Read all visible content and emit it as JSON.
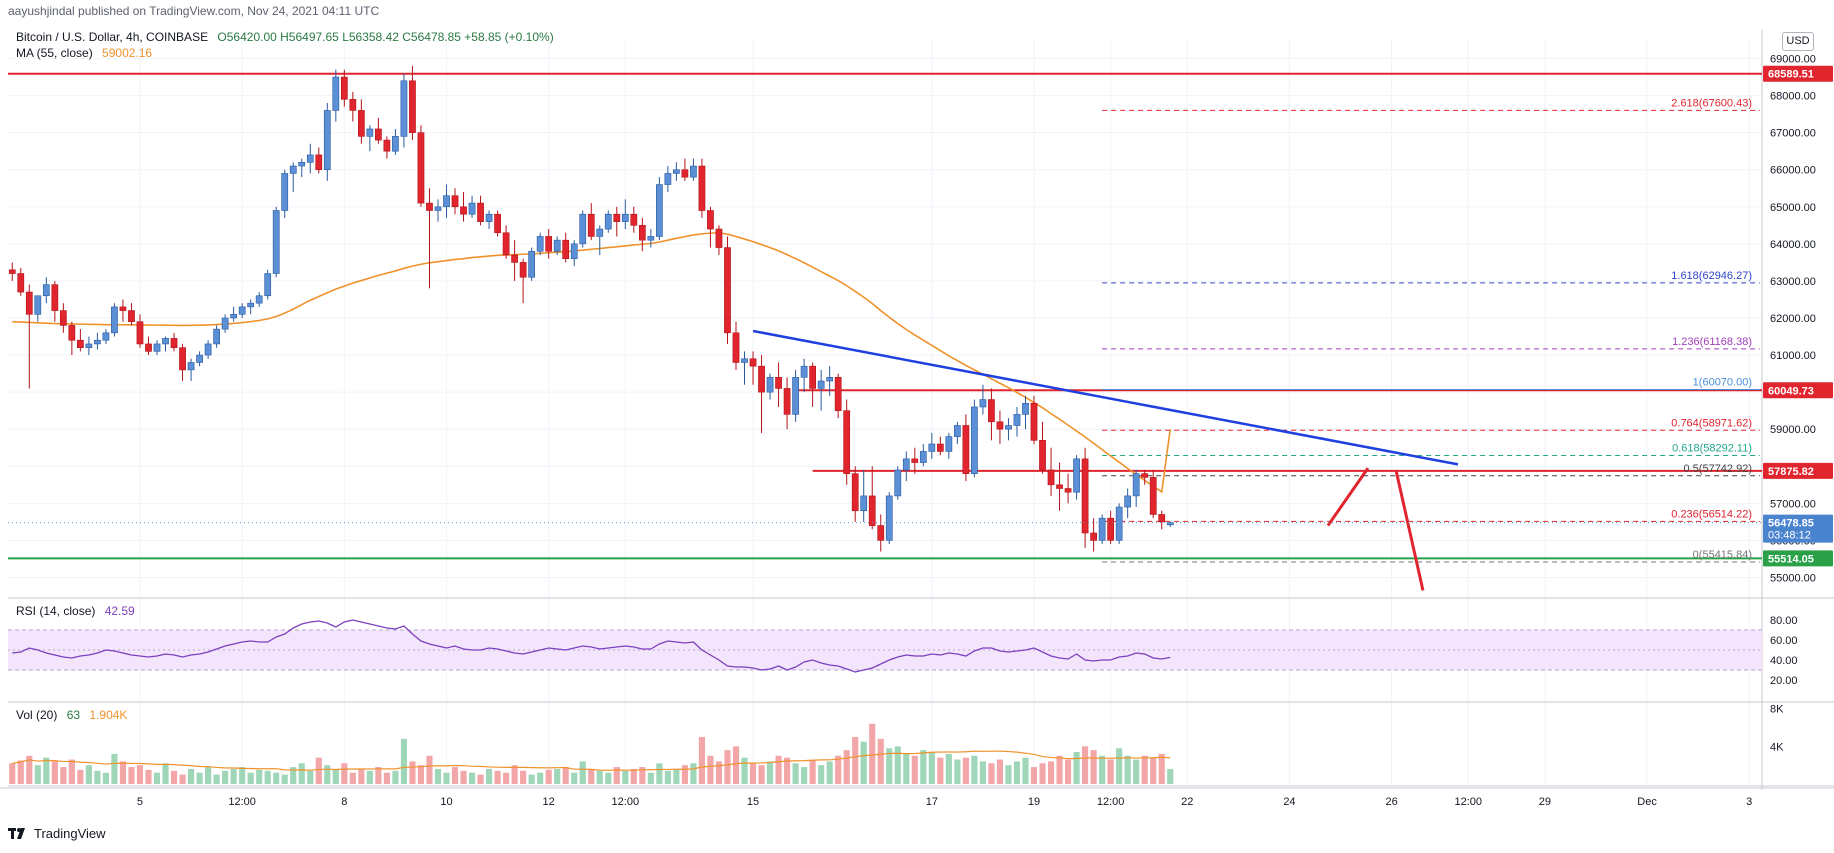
{
  "header": {
    "publisher": "aayushjindal published on TradingView.com, Nov 24, 2021 04:11 UTC"
  },
  "symbol": {
    "title": "Bitcoin / U.S. Dollar, 4h, COINBASE",
    "ohlc": "O56420.00  H56497.65  L56358.42  C56478.85  +58.85 (+0.10%)",
    "ma_label": "MA (55, close)",
    "ma_value": "59002.16"
  },
  "rsi": {
    "label": "RSI (14, close)",
    "value": "42.59"
  },
  "vol": {
    "label": "Vol (20)",
    "value": "63",
    "value2": "1.904K"
  },
  "currency_badge": "USD",
  "footer": {
    "brand": "TradingView"
  },
  "colors": {
    "up": "#5b8fd6",
    "down": "#e0252f",
    "ma": "#f0922b",
    "trend": "#1f3fe0",
    "level": "#e0252f",
    "support": "#2aa148",
    "rsi": "#7c3fbf",
    "rsi_band": "#f3e5fb"
  },
  "chart_data": {
    "type": "candlestick",
    "symbol": "BTCUSD",
    "timeframe": "4h",
    "ylim": [
      54500,
      69500
    ],
    "y_ticks": [
      55000,
      56000,
      57000,
      58000,
      59000,
      60000,
      61000,
      62000,
      63000,
      64000,
      65000,
      66000,
      67000,
      68000,
      69000
    ],
    "x_ticks": [
      {
        "i": 15,
        "label": "5"
      },
      {
        "i": 27,
        "label": "12:00"
      },
      {
        "i": 39,
        "label": "8"
      },
      {
        "i": 51,
        "label": "10"
      },
      {
        "i": 63,
        "label": "12"
      },
      {
        "i": 72,
        "label": "12:00"
      },
      {
        "i": 87,
        "label": "15"
      },
      {
        "i": 108,
        "label": "17"
      },
      {
        "i": 120,
        "label": "19"
      },
      {
        "i": 129,
        "label": "12:00"
      },
      {
        "i": 138,
        "label": "22"
      },
      {
        "i": 150,
        "label": "24"
      },
      {
        "i": 162,
        "label": "26"
      },
      {
        "i": 171,
        "label": "12:00"
      },
      {
        "i": 180,
        "label": "29"
      },
      {
        "i": 192,
        "label": "Dec"
      },
      {
        "i": 204,
        "label": "3"
      }
    ],
    "candles": [
      [
        63300,
        63500,
        63000,
        63200
      ],
      [
        63200,
        63350,
        62600,
        62700
      ],
      [
        62700,
        62900,
        60100,
        62100
      ],
      [
        62100,
        62600,
        61900,
        62600
      ],
      [
        62600,
        63100,
        62400,
        62900
      ],
      [
        62900,
        63000,
        61900,
        62200
      ],
      [
        62200,
        62400,
        61600,
        61800
      ],
      [
        61800,
        61900,
        61000,
        61400
      ],
      [
        61400,
        61700,
        61100,
        61200
      ],
      [
        61200,
        61500,
        61000,
        61300
      ],
      [
        61300,
        61600,
        61150,
        61400
      ],
      [
        61400,
        61700,
        61300,
        61600
      ],
      [
        61600,
        62400,
        61500,
        62300
      ],
      [
        62300,
        62500,
        61900,
        62200
      ],
      [
        62200,
        62400,
        61800,
        61900
      ],
      [
        61900,
        62100,
        61200,
        61300
      ],
      [
        61300,
        61500,
        61000,
        61100
      ],
      [
        61100,
        61400,
        61000,
        61300
      ],
      [
        61300,
        61500,
        61100,
        61450
      ],
      [
        61450,
        61600,
        61100,
        61200
      ],
      [
        61200,
        61300,
        60300,
        60600
      ],
      [
        60600,
        60900,
        60300,
        60800
      ],
      [
        60800,
        61100,
        60700,
        61000
      ],
      [
        61000,
        61400,
        60900,
        61300
      ],
      [
        61300,
        61800,
        61200,
        61700
      ],
      [
        61700,
        62100,
        61600,
        62000
      ],
      [
        62000,
        62300,
        61900,
        62100
      ],
      [
        62100,
        62400,
        62000,
        62300
      ],
      [
        62300,
        62500,
        62100,
        62400
      ],
      [
        62400,
        62700,
        62300,
        62600
      ],
      [
        62600,
        63300,
        62500,
        63200
      ],
      [
        63200,
        65000,
        63100,
        64900
      ],
      [
        64900,
        66000,
        64700,
        65900
      ],
      [
        65900,
        66200,
        65400,
        66100
      ],
      [
        66100,
        66300,
        65800,
        66200
      ],
      [
        66200,
        66700,
        65900,
        66400
      ],
      [
        66400,
        66600,
        65900,
        66000
      ],
      [
        66000,
        67800,
        65700,
        67600
      ],
      [
        67600,
        68700,
        67300,
        68500
      ],
      [
        68500,
        68700,
        67700,
        67900
      ],
      [
        67900,
        68100,
        67300,
        67600
      ],
      [
        67600,
        67900,
        66700,
        66900
      ],
      [
        66900,
        67200,
        66500,
        67100
      ],
      [
        67100,
        67400,
        66700,
        66800
      ],
      [
        66800,
        66900,
        66300,
        66500
      ],
      [
        66500,
        67100,
        66400,
        66900
      ],
      [
        66900,
        68600,
        66600,
        68400
      ],
      [
        68400,
        68800,
        66800,
        67000
      ],
      [
        67000,
        67200,
        65000,
        65100
      ],
      [
        65100,
        65500,
        62800,
        64900
      ],
      [
        64900,
        65200,
        64600,
        65000
      ],
      [
        65000,
        65600,
        64700,
        65300
      ],
      [
        65300,
        65500,
        64800,
        65000
      ],
      [
        65000,
        65400,
        64600,
        64800
      ],
      [
        64800,
        65300,
        64700,
        65100
      ],
      [
        65100,
        65300,
        64500,
        64600
      ],
      [
        64600,
        64900,
        64400,
        64800
      ],
      [
        64800,
        64900,
        64200,
        64300
      ],
      [
        64300,
        64500,
        63600,
        63700
      ],
      [
        63700,
        64100,
        63000,
        63500
      ],
      [
        63500,
        63600,
        62400,
        63100
      ],
      [
        63100,
        63900,
        63000,
        63800
      ],
      [
        63800,
        64300,
        63700,
        64200
      ],
      [
        64200,
        64400,
        63600,
        63800
      ],
      [
        63800,
        64200,
        63700,
        64100
      ],
      [
        64100,
        64300,
        63500,
        63600
      ],
      [
        63600,
        64100,
        63400,
        64000
      ],
      [
        64000,
        64900,
        63900,
        64800
      ],
      [
        64800,
        65100,
        64100,
        64200
      ],
      [
        64200,
        64500,
        63700,
        64400
      ],
      [
        64400,
        64900,
        64300,
        64800
      ],
      [
        64800,
        65000,
        64200,
        64600
      ],
      [
        64600,
        65200,
        64400,
        64800
      ],
      [
        64800,
        65000,
        64300,
        64500
      ],
      [
        64500,
        64700,
        63800,
        64100
      ],
      [
        64100,
        64400,
        63900,
        64200
      ],
      [
        64200,
        65800,
        64100,
        65600
      ],
      [
        65600,
        66100,
        65400,
        65900
      ],
      [
        65900,
        66200,
        65700,
        66000
      ],
      [
        66000,
        66300,
        65700,
        65800
      ],
      [
        65800,
        66300,
        65700,
        66100
      ],
      [
        66100,
        66300,
        64700,
        64900
      ],
      [
        64900,
        65000,
        63900,
        64400
      ],
      [
        64400,
        64500,
        63700,
        63900
      ],
      [
        63900,
        64200,
        61300,
        61600
      ],
      [
        61600,
        61900,
        60600,
        60800
      ],
      [
        60800,
        61100,
        60200,
        60900
      ],
      [
        60900,
        61100,
        60200,
        60700
      ],
      [
        60700,
        61000,
        58900,
        60000
      ],
      [
        60000,
        60500,
        59800,
        60400
      ],
      [
        60400,
        60800,
        59600,
        60100
      ],
      [
        60100,
        60400,
        59000,
        59400
      ],
      [
        59400,
        60600,
        59200,
        60400
      ],
      [
        60400,
        60900,
        60000,
        60700
      ],
      [
        60700,
        60800,
        59600,
        60100
      ],
      [
        60100,
        60600,
        59500,
        60300
      ],
      [
        60300,
        60700,
        59900,
        60400
      ],
      [
        60400,
        60500,
        59300,
        59500
      ],
      [
        59500,
        59800,
        57500,
        57800
      ],
      [
        57800,
        58000,
        56500,
        56800
      ],
      [
        56800,
        57900,
        56500,
        57200
      ],
      [
        57200,
        58000,
        56300,
        56400
      ],
      [
        56400,
        56700,
        55700,
        56000
      ],
      [
        56000,
        57300,
        55900,
        57200
      ],
      [
        57200,
        58000,
        57100,
        57900
      ],
      [
        57900,
        58400,
        57600,
        58200
      ],
      [
        58200,
        58500,
        57800,
        58100
      ],
      [
        58100,
        58600,
        58000,
        58400
      ],
      [
        58400,
        58900,
        58200,
        58600
      ],
      [
        58600,
        58800,
        58300,
        58400
      ],
      [
        58400,
        58900,
        58200,
        58800
      ],
      [
        58800,
        59200,
        58600,
        59100
      ],
      [
        59100,
        59400,
        57600,
        57800
      ],
      [
        57800,
        59800,
        57700,
        59600
      ],
      [
        59600,
        60200,
        59400,
        59800
      ],
      [
        59800,
        60100,
        58700,
        59200
      ],
      [
        59200,
        59500,
        58600,
        59000
      ],
      [
        59000,
        59300,
        58700,
        59100
      ],
      [
        59100,
        59600,
        58800,
        59400
      ],
      [
        59400,
        59900,
        59000,
        59700
      ],
      [
        59700,
        59900,
        58600,
        58700
      ],
      [
        58700,
        59200,
        57800,
        57900
      ],
      [
        57900,
        58500,
        57200,
        57500
      ],
      [
        57500,
        58100,
        56800,
        57400
      ],
      [
        57400,
        57800,
        57000,
        57300
      ],
      [
        57300,
        58300,
        57100,
        58200
      ],
      [
        58200,
        58500,
        55800,
        56200
      ],
      [
        56200,
        56600,
        55700,
        56000
      ],
      [
        56000,
        56700,
        55900,
        56600
      ],
      [
        56600,
        56800,
        55900,
        56000
      ],
      [
        56000,
        57000,
        55900,
        56900
      ],
      [
        56900,
        57400,
        56600,
        57200
      ],
      [
        57200,
        57900,
        56900,
        57800
      ],
      [
        57800,
        57900,
        57500,
        57700
      ],
      [
        57700,
        57900,
        56600,
        56700
      ],
      [
        56700,
        56800,
        56300,
        56500
      ],
      [
        56420,
        56497.65,
        56358.42,
        56478.85
      ]
    ],
    "volumes": [
      22,
      25,
      30,
      20,
      28,
      24,
      18,
      26,
      15,
      20,
      14,
      12,
      32,
      24,
      18,
      20,
      15,
      12,
      22,
      14,
      10,
      16,
      12,
      18,
      10,
      14,
      16,
      18,
      12,
      15,
      14,
      12,
      10,
      18,
      22,
      14,
      28,
      20,
      15,
      22,
      12,
      16,
      14,
      18,
      12,
      14,
      48,
      24,
      20,
      30,
      16,
      12,
      18,
      14,
      12,
      10,
      16,
      14,
      12,
      20,
      14,
      10,
      12,
      15,
      16,
      18,
      12,
      24,
      16,
      14,
      12,
      18,
      14,
      16,
      18,
      12,
      22,
      14,
      16,
      20,
      22,
      50,
      30,
      24,
      36,
      40,
      28,
      22,
      20,
      24,
      30,
      28,
      22,
      18,
      26,
      20,
      24,
      30,
      36,
      50,
      45,
      64,
      48,
      38,
      40,
      32,
      30,
      36,
      34,
      28,
      32,
      26,
      28,
      30,
      24,
      22,
      26,
      20,
      24,
      28,
      18,
      22,
      24,
      30,
      26,
      34,
      40,
      36,
      30,
      26,
      38,
      30,
      26,
      30,
      28,
      32,
      16
    ],
    "rsi": [
      47,
      48,
      52,
      50,
      47,
      45,
      43,
      42,
      44,
      45,
      47,
      50,
      49,
      47,
      45,
      44,
      43,
      44,
      46,
      45,
      43,
      45,
      46,
      48,
      51,
      54,
      56,
      58,
      59,
      58,
      58,
      63,
      66,
      72,
      76,
      78,
      79,
      77,
      73,
      78,
      80,
      78,
      76,
      74,
      72,
      71,
      74,
      66,
      59,
      56,
      54,
      52,
      54,
      51,
      50,
      50,
      52,
      51,
      49,
      47,
      46,
      48,
      50,
      52,
      51,
      50,
      52,
      54,
      53,
      51,
      52,
      53,
      54,
      53,
      51,
      51,
      56,
      59,
      58,
      57,
      58,
      50,
      45,
      40,
      34,
      33,
      33,
      32,
      30,
      31,
      34,
      30,
      33,
      38,
      40,
      37,
      35,
      34,
      31,
      28,
      30,
      32,
      36,
      40,
      43,
      45,
      44,
      44,
      46,
      45,
      47,
      46,
      44,
      49,
      52,
      52,
      49,
      48,
      49,
      50,
      52,
      48,
      44,
      42,
      41,
      46,
      40,
      39,
      40,
      40,
      43,
      44,
      47,
      46,
      42,
      41,
      42.59
    ],
    "ma55": [
      61900,
      61890,
      61880,
      61870,
      61860,
      61850,
      61845,
      61840,
      61835,
      61830,
      61825,
      61820,
      61820,
      61818,
      61815,
      61812,
      61810,
      61808,
      61806,
      61804,
      61800,
      61802,
      61806,
      61812,
      61822,
      61836,
      61854,
      61876,
      61902,
      61932,
      61976,
      62040,
      62130,
      62240,
      62360,
      62480,
      62580,
      62680,
      62780,
      62860,
      62940,
      63010,
      63080,
      63150,
      63210,
      63270,
      63340,
      63400,
      63450,
      63490,
      63520,
      63550,
      63580,
      63600,
      63630,
      63650,
      63670,
      63690,
      63700,
      63710,
      63720,
      63730,
      63745,
      63760,
      63775,
      63790,
      63810,
      63830,
      63855,
      63875,
      63900,
      63920,
      63945,
      63970,
      63990,
      64010,
      64050,
      64100,
      64150,
      64195,
      64240,
      64270,
      64290,
      64300,
      64260,
      64200,
      64130,
      64060,
      63980,
      63900,
      63810,
      63710,
      63600,
      63490,
      63370,
      63250,
      63130,
      63010,
      62870,
      62720,
      62560,
      62390,
      62200,
      62020,
      61850,
      61690,
      61540,
      61400,
      61260,
      61120,
      60980,
      60850,
      60720,
      60600,
      60480,
      60360,
      60240,
      60120,
      59990,
      59860,
      59720,
      59580,
      59420,
      59270,
      59110,
      58950,
      58790,
      58620,
      58450,
      58280,
      58110,
      57940,
      57780,
      57620,
      57460,
      57310,
      59002.16
    ],
    "levels": [
      {
        "y": 68589.51,
        "label": "68589.51",
        "color": "#e0252f"
      },
      {
        "y": 60049.73,
        "label": "60049.73",
        "color": "#e0252f"
      },
      {
        "y": 57875.82,
        "label": "57875.82",
        "color": "#e0252f"
      },
      {
        "y": 55514.05,
        "label": "55514.05",
        "color": "#2aa148"
      }
    ],
    "last_price": {
      "label": "56478.85",
      "countdown": "03:48:12"
    },
    "fibonacci": [
      {
        "ratio": "2.618",
        "price": "(67600.43)",
        "y": 67600.43,
        "color": "#e0252f",
        "dash": true
      },
      {
        "ratio": "1.618",
        "price": "(62946.27)",
        "y": 62946.27,
        "color": "#3046c8",
        "dash": true
      },
      {
        "ratio": "1.236",
        "price": "(61168.38)",
        "y": 61168.38,
        "color": "#a13fb8",
        "dash": true
      },
      {
        "ratio": "1",
        "price": "(60070.00)",
        "y": 60070.0,
        "color": "#4a90d9",
        "dash": false
      },
      {
        "ratio": "0.764",
        "price": "(58971.62)",
        "y": 58971.62,
        "color": "#e0252f",
        "dash": true
      },
      {
        "ratio": "0.618",
        "price": "(58292.11)",
        "y": 58292.11,
        "color": "#22a88c",
        "dash": true
      },
      {
        "ratio": "0.5",
        "price": "(57742.92)",
        "y": 57742.92,
        "color": "#444444",
        "dash": true
      },
      {
        "ratio": "0.236",
        "price": "(56514.22)",
        "y": 56514.22,
        "color": "#e0252f",
        "dash": true
      },
      {
        "ratio": "0",
        "price": "(55415.84)",
        "y": 55415.84,
        "color": "#777777",
        "dash": true
      }
    ],
    "rsi_ticks": [
      20,
      40,
      60,
      80
    ],
    "vol_ticks": [
      {
        "v": 40,
        "label": "4K"
      },
      {
        "v": 80,
        "label": "8K"
      }
    ]
  }
}
